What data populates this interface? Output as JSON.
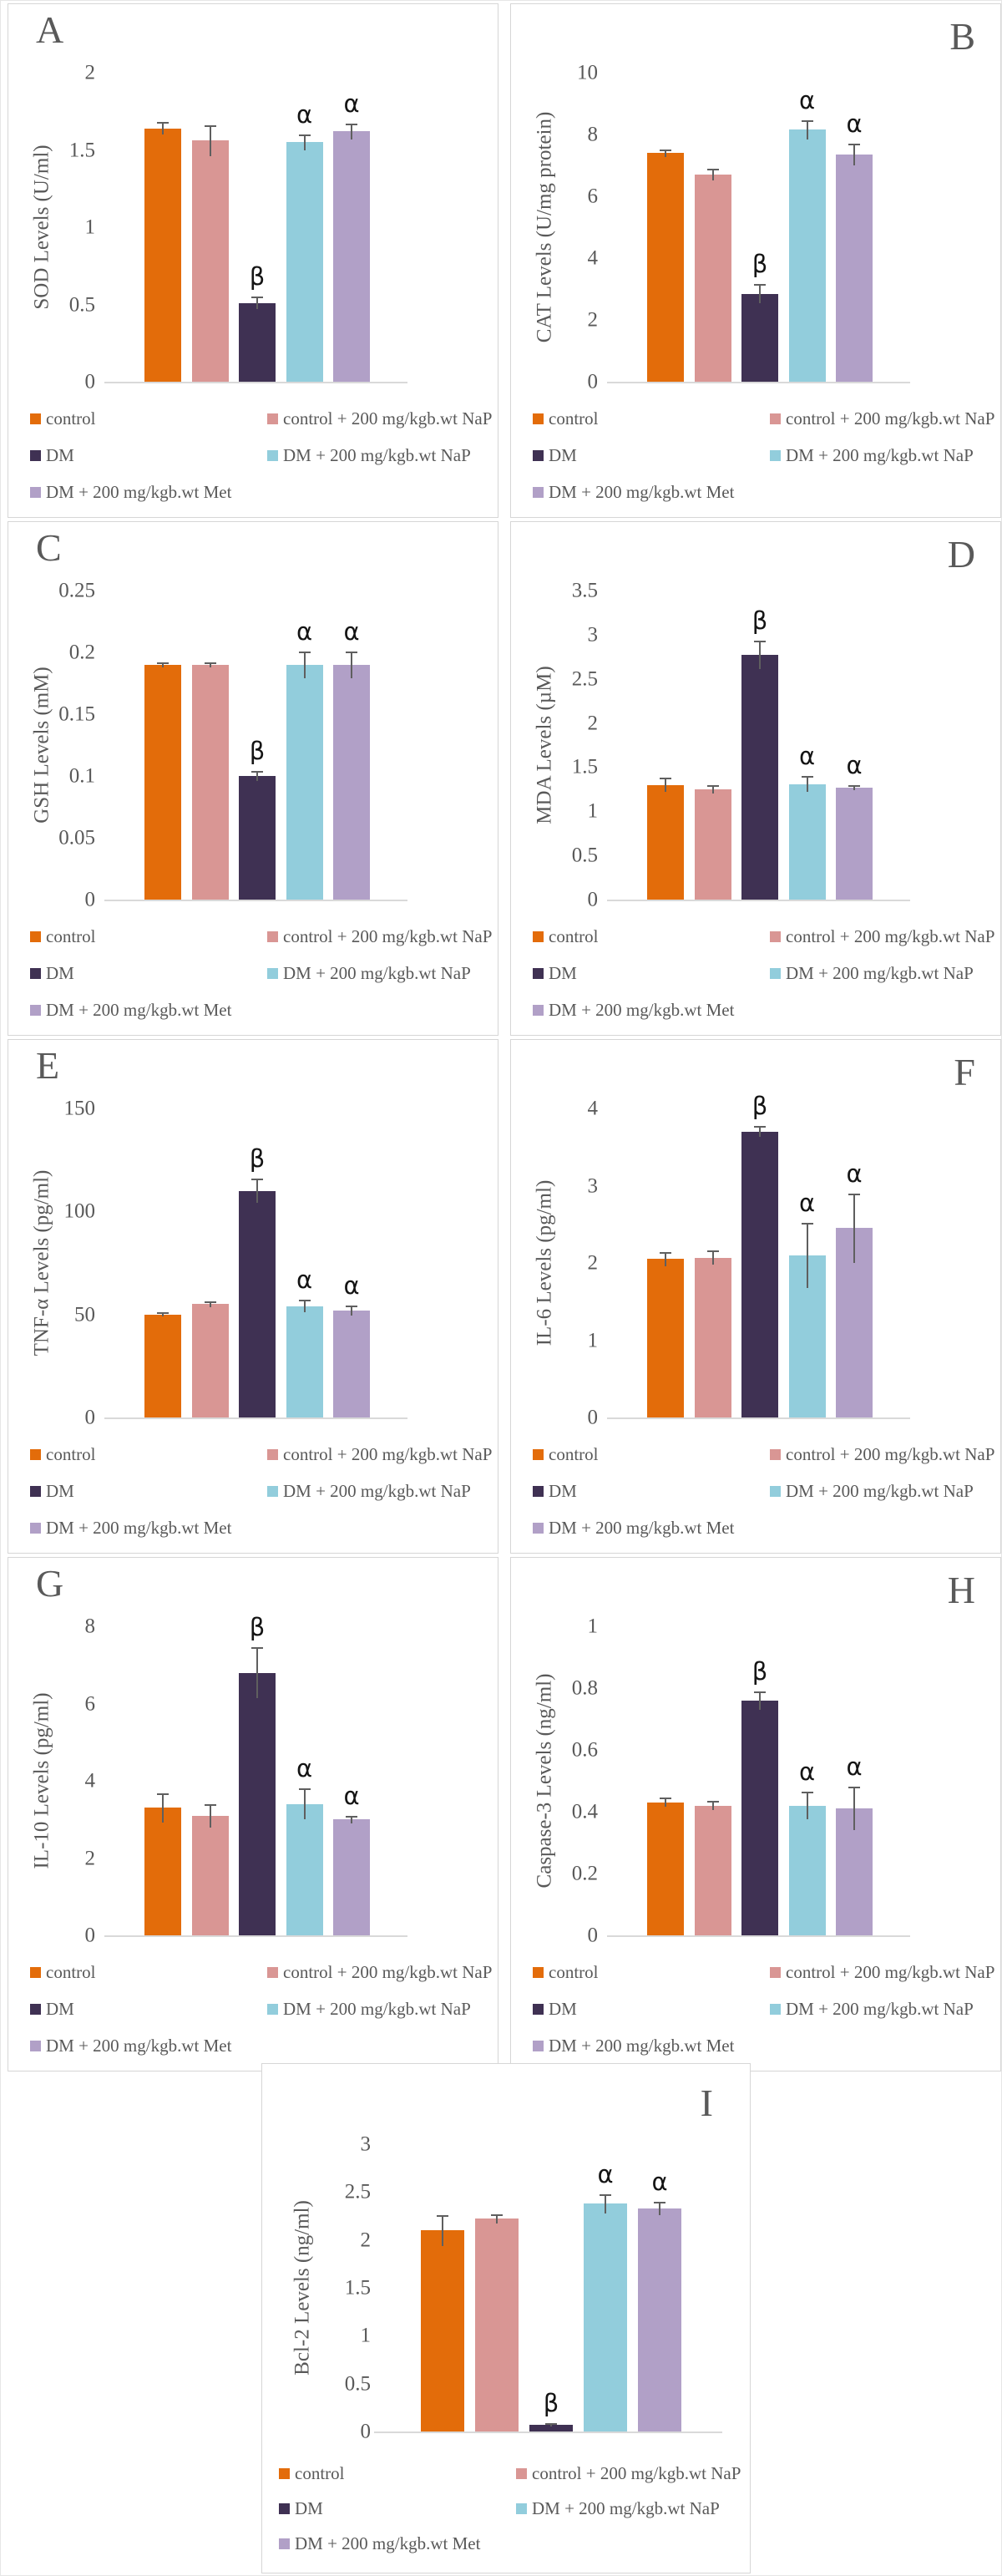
{
  "style": {
    "background": "#ffffff",
    "panel_border": "#d6d6d6",
    "axis_color": "#d9d9d9",
    "text_color": "#595959",
    "error_bar_color": "#5f5f5f",
    "sig_color": "#141414"
  },
  "groups": [
    {
      "label": "control",
      "color": "#E36C0A"
    },
    {
      "label": "control + 200 mg/kgb.wt NaP",
      "color": "#D99694"
    },
    {
      "label": "DM",
      "color": "#3F3153"
    },
    {
      "label": "DM + 200 mg/kgb.wt NaP",
      "color": "#92CDDC"
    },
    {
      "label": "DM + 200 mg/kgb.wt Met",
      "color": "#B1A0C7"
    }
  ],
  "significance": {
    "dm_symbol": "β",
    "treated_symbol": "α"
  },
  "chart_data": [
    {
      "panel": "A",
      "type": "bar",
      "letter_side": "left",
      "ylabel": "SOD Levels (U/ml)",
      "ylim": [
        0,
        2
      ],
      "yticks": [
        "0",
        "0.5",
        "1",
        "1.5",
        "2"
      ],
      "categories": [
        "control",
        "control + 200 mg/kgb.wt NaP",
        "DM",
        "DM + 200 mg/kgb.wt NaP",
        "DM + 200 mg/kgb.wt Met"
      ],
      "values": [
        1.64,
        1.56,
        0.51,
        1.55,
        1.62
      ],
      "errors": [
        0.04,
        0.1,
        0.04,
        0.05,
        0.05
      ],
      "sig": [
        "",
        "",
        "β",
        "α",
        "α"
      ]
    },
    {
      "panel": "B",
      "type": "bar",
      "letter_side": "right",
      "ylabel": "CAT Levels (U/mg protein)",
      "ylim": [
        0,
        10
      ],
      "yticks": [
        "0",
        "2",
        "4",
        "6",
        "8",
        "10"
      ],
      "categories": [
        "control",
        "control + 200 mg/kgb.wt NaP",
        "DM",
        "DM + 200 mg/kgb.wt NaP",
        "DM + 200 mg/kgb.wt Met"
      ],
      "values": [
        7.4,
        6.7,
        2.85,
        8.15,
        7.35
      ],
      "errors": [
        0.12,
        0.2,
        0.3,
        0.3,
        0.35
      ],
      "sig": [
        "",
        "",
        "β",
        "α",
        "α"
      ]
    },
    {
      "panel": "C",
      "type": "bar",
      "letter_side": "left",
      "ylabel": "GSH Levels (mM)",
      "ylim": [
        0,
        0.25
      ],
      "yticks": [
        "0",
        "0.05",
        "0.1",
        "0.15",
        "0.2",
        "0.25"
      ],
      "categories": [
        "control",
        "control + 200 mg/kgb.wt NaP",
        "DM",
        "DM + 200 mg/kgb.wt NaP",
        "DM + 200 mg/kgb.wt Met"
      ],
      "values": [
        0.19,
        0.19,
        0.1,
        0.19,
        0.19
      ],
      "errors": [
        0.002,
        0.002,
        0.004,
        0.011,
        0.011
      ],
      "sig": [
        "",
        "",
        "β",
        "α",
        "α"
      ]
    },
    {
      "panel": "D",
      "type": "bar",
      "letter_side": "right",
      "ylabel": "MDA Levels (µM)",
      "ylim": [
        0,
        3.5
      ],
      "yticks": [
        "0",
        "0.5",
        "1",
        "1.5",
        "2",
        "2.5",
        "3",
        "3.5"
      ],
      "categories": [
        "control",
        "control + 200 mg/kgb.wt NaP",
        "DM",
        "DM + 200 mg/kgb.wt NaP",
        "DM + 200 mg/kgb.wt Met"
      ],
      "values": [
        1.3,
        1.25,
        2.77,
        1.31,
        1.27
      ],
      "errors": [
        0.08,
        0.05,
        0.16,
        0.09,
        0.03
      ],
      "sig": [
        "",
        "",
        "β",
        "α",
        "α"
      ]
    },
    {
      "panel": "E",
      "type": "bar",
      "letter_side": "left",
      "ylabel": "TNF-α Levels (pg/ml)",
      "ylim": [
        0,
        150
      ],
      "yticks": [
        "0",
        "50",
        "100",
        "150"
      ],
      "categories": [
        "control",
        "control + 200 mg/kgb.wt NaP",
        "DM",
        "DM + 200 mg/kgb.wt NaP",
        "DM + 200 mg/kgb.wt Met"
      ],
      "values": [
        50,
        55,
        110,
        54,
        52
      ],
      "errors": [
        1,
        1.5,
        6,
        3,
        2.5
      ],
      "sig": [
        "",
        "",
        "β",
        "α",
        "α"
      ]
    },
    {
      "panel": "F",
      "type": "bar",
      "letter_side": "right",
      "ylabel": "IL-6 Levels (pg/ml)",
      "ylim": [
        0,
        4
      ],
      "yticks": [
        "0",
        "1",
        "2",
        "3",
        "4"
      ],
      "categories": [
        "control",
        "control + 200 mg/kgb.wt NaP",
        "DM",
        "DM + 200 mg/kgb.wt NaP",
        "DM + 200 mg/kgb.wt Met"
      ],
      "values": [
        2.05,
        2.07,
        3.7,
        2.1,
        2.45
      ],
      "errors": [
        0.09,
        0.09,
        0.07,
        0.42,
        0.45
      ],
      "sig": [
        "",
        "",
        "β",
        "α",
        "α"
      ]
    },
    {
      "panel": "G",
      "type": "bar",
      "letter_side": "left",
      "ylabel": "IL-10 Levels (pg/ml)",
      "ylim": [
        0,
        8
      ],
      "yticks": [
        "0",
        "2",
        "4",
        "6",
        "8"
      ],
      "categories": [
        "control",
        "control + 200 mg/kgb.wt NaP",
        "DM",
        "DM + 200 mg/kgb.wt NaP",
        "DM + 200 mg/kgb.wt Met"
      ],
      "values": [
        3.3,
        3.1,
        6.8,
        3.4,
        3.0
      ],
      "errors": [
        0.38,
        0.3,
        0.65,
        0.4,
        0.1
      ],
      "sig": [
        "",
        "",
        "β",
        "α",
        "α"
      ]
    },
    {
      "panel": "H",
      "type": "bar",
      "letter_side": "right",
      "ylabel": "Caspase-3 Levels (ng/ml)",
      "ylim": [
        0,
        1
      ],
      "yticks": [
        "0",
        "0.2",
        "0.4",
        "0.6",
        "0.8",
        "1"
      ],
      "categories": [
        "control",
        "control + 200 mg/kgb.wt NaP",
        "DM",
        "DM + 200 mg/kgb.wt NaP",
        "DM + 200 mg/kgb.wt Met"
      ],
      "values": [
        0.43,
        0.42,
        0.76,
        0.42,
        0.41
      ],
      "errors": [
        0.015,
        0.015,
        0.03,
        0.045,
        0.07
      ],
      "sig": [
        "",
        "",
        "β",
        "α",
        "α"
      ]
    },
    {
      "panel": "I",
      "type": "bar",
      "letter_side": "right",
      "ylabel": "Bcl-2 Levels (ng/ml)",
      "ylim": [
        0,
        3
      ],
      "yticks": [
        "0",
        "0.5",
        "1",
        "1.5",
        "2",
        "2.5",
        "3"
      ],
      "categories": [
        "control",
        "control + 200 mg/kgb.wt NaP",
        "DM",
        "DM + 200 mg/kgb.wt NaP",
        "DM + 200 mg/kgb.wt Met"
      ],
      "values": [
        2.1,
        2.22,
        0.07,
        2.38,
        2.33
      ],
      "errors": [
        0.16,
        0.05,
        0.02,
        0.1,
        0.07
      ],
      "sig": [
        "",
        "",
        "β",
        "α",
        "α"
      ]
    }
  ]
}
